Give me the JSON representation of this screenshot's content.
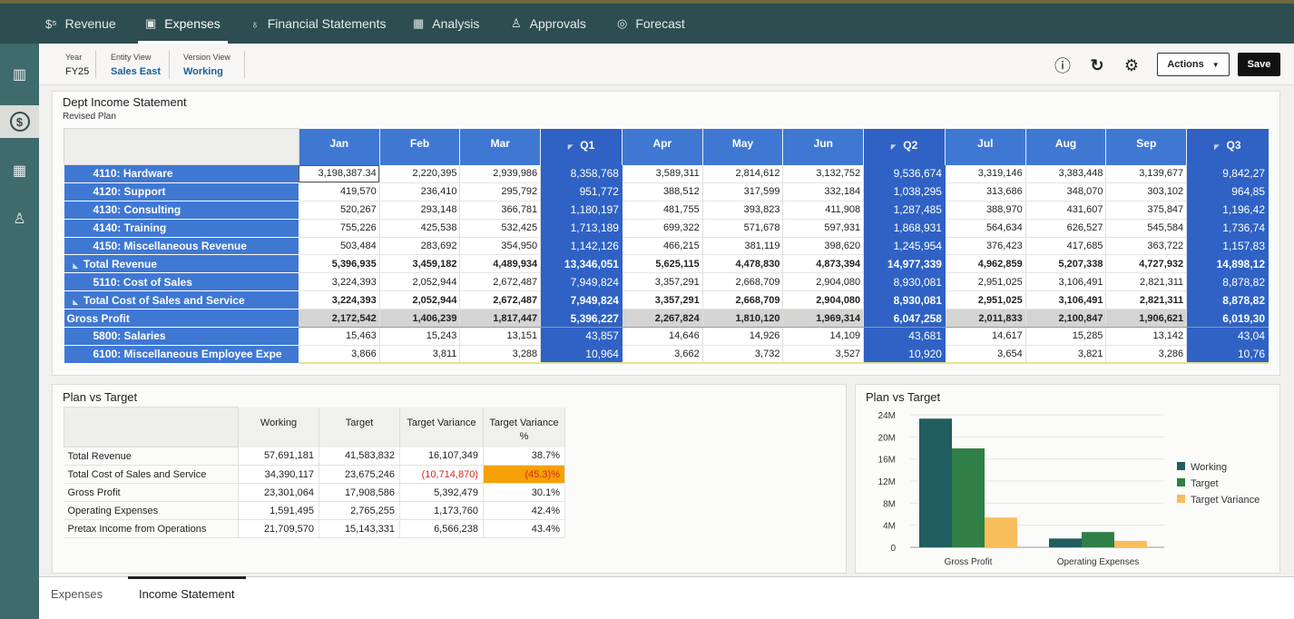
{
  "nav": {
    "tabs": [
      {
        "label": "Revenue",
        "icon": "revenue-icon",
        "glyph": "$⁵"
      },
      {
        "label": "Expenses",
        "icon": "wallet-icon",
        "glyph": "▣"
      },
      {
        "label": "Financial Statements",
        "icon": "lightbulb-icon",
        "glyph": "♁"
      },
      {
        "label": "Analysis",
        "icon": "calculator-icon",
        "glyph": "▦"
      },
      {
        "label": "Approvals",
        "icon": "org-chart-icon",
        "glyph": "♙"
      },
      {
        "label": "Forecast",
        "icon": "target-icon",
        "glyph": "◎"
      }
    ],
    "active": "Expenses"
  },
  "rail": {
    "items": [
      {
        "icon": "chart-icon",
        "glyph": "▥"
      },
      {
        "icon": "dollar-cycle-icon",
        "glyph": "$"
      },
      {
        "icon": "grid-settings-icon",
        "glyph": "▦"
      },
      {
        "icon": "user-dollar-icon",
        "glyph": "♙"
      }
    ]
  },
  "pov": {
    "year_label": "Year",
    "year_value": "FY25",
    "entity_label": "Entity View",
    "entity_value": "Sales East",
    "version_label": "Version View",
    "version_value": "Working"
  },
  "toolbar": {
    "info_glyph": "ⓘ",
    "refresh_glyph": "↻",
    "settings_glyph": "⚙",
    "actions_label": "Actions",
    "save_label": "Save"
  },
  "income": {
    "title": "Dept Income Statement",
    "subtitle": "Revised Plan",
    "columns": [
      {
        "label": "Jan",
        "q": false
      },
      {
        "label": "Feb",
        "q": false
      },
      {
        "label": "Mar",
        "q": false
      },
      {
        "label": "Q1",
        "q": true
      },
      {
        "label": "Apr",
        "q": false
      },
      {
        "label": "May",
        "q": false
      },
      {
        "label": "Jun",
        "q": false
      },
      {
        "label": "Q2",
        "q": true
      },
      {
        "label": "Jul",
        "q": false
      },
      {
        "label": "Aug",
        "q": false
      },
      {
        "label": "Sep",
        "q": false
      },
      {
        "label": "Q3",
        "q": true
      }
    ],
    "rows": [
      {
        "label": "4110: Hardware",
        "level": 2,
        "values": [
          "3,198,387.34",
          "2,220,395",
          "2,939,986",
          "8,358,768",
          "3,589,311",
          "2,814,612",
          "3,132,752",
          "9,536,674",
          "3,319,146",
          "3,383,448",
          "3,139,677",
          "9,842,27"
        ]
      },
      {
        "label": "4120: Support",
        "level": 2,
        "values": [
          "419,570",
          "236,410",
          "295,792",
          "951,772",
          "388,512",
          "317,599",
          "332,184",
          "1,038,295",
          "313,686",
          "348,070",
          "303,102",
          "964,85"
        ]
      },
      {
        "label": "4130: Consulting",
        "level": 2,
        "values": [
          "520,267",
          "293,148",
          "366,781",
          "1,180,197",
          "481,755",
          "393,823",
          "411,908",
          "1,287,485",
          "388,970",
          "431,607",
          "375,847",
          "1,196,42"
        ]
      },
      {
        "label": "4140: Training",
        "level": 2,
        "values": [
          "755,226",
          "425,538",
          "532,425",
          "1,713,189",
          "699,322",
          "571,678",
          "597,931",
          "1,868,931",
          "564,634",
          "626,527",
          "545,584",
          "1,736,74"
        ]
      },
      {
        "label": "4150: Miscellaneous Revenue",
        "level": 2,
        "values": [
          "503,484",
          "283,692",
          "354,950",
          "1,142,126",
          "466,215",
          "381,119",
          "398,620",
          "1,245,954",
          "376,423",
          "417,685",
          "363,722",
          "1,157,83"
        ]
      },
      {
        "label": "Total Revenue",
        "level": 1,
        "bold": true,
        "expand": true,
        "values": [
          "5,396,935",
          "3,459,182",
          "4,489,934",
          "13,346,051",
          "5,625,115",
          "4,478,830",
          "4,873,394",
          "14,977,339",
          "4,962,859",
          "5,207,338",
          "4,727,932",
          "14,898,12"
        ]
      },
      {
        "label": "5110: Cost of Sales",
        "level": 2,
        "values": [
          "3,224,393",
          "2,052,944",
          "2,672,487",
          "7,949,824",
          "3,357,291",
          "2,668,709",
          "2,904,080",
          "8,930,081",
          "2,951,025",
          "3,106,491",
          "2,821,311",
          "8,878,82"
        ]
      },
      {
        "label": "Total Cost of Sales and Service",
        "level": 1,
        "bold": true,
        "expand": true,
        "values": [
          "3,224,393",
          "2,052,944",
          "2,672,487",
          "7,949,824",
          "3,357,291",
          "2,668,709",
          "2,904,080",
          "8,930,081",
          "2,951,025",
          "3,106,491",
          "2,821,311",
          "8,878,82"
        ]
      },
      {
        "label": "Gross Profit",
        "level": 0,
        "bold": true,
        "gp": true,
        "values": [
          "2,172,542",
          "1,406,239",
          "1,817,447",
          "5,396,227",
          "2,267,824",
          "1,810,120",
          "1,969,314",
          "6,047,258",
          "2,011,833",
          "2,100,847",
          "1,906,621",
          "6,019,30"
        ]
      },
      {
        "label": "5800: Salaries",
        "level": 2,
        "values": [
          "15,463",
          "15,243",
          "13,151",
          "43,857",
          "14,646",
          "14,926",
          "14,109",
          "43,681",
          "14,617",
          "15,285",
          "13,142",
          "43,04"
        ]
      },
      {
        "label": "6100: Miscellaneous Employee Expe",
        "level": 2,
        "values": [
          "3,866",
          "3,811",
          "3,288",
          "10,964",
          "3,662",
          "3,732",
          "3,527",
          "10,920",
          "3,654",
          "3,821",
          "3,286",
          "10,76"
        ]
      }
    ]
  },
  "plan_table": {
    "title": "Plan vs Target",
    "headers": [
      "Working",
      "Target",
      "Target Variance",
      "Target Variance %"
    ],
    "rows": [
      {
        "label": "Total Revenue",
        "values": [
          "57,691,181",
          "41,583,832",
          "16,107,349",
          "38.7%"
        ]
      },
      {
        "label": "Total Cost of Sales and Service",
        "values": [
          "34,390,117",
          "23,675,246",
          "(10,714,870)",
          "(45.3)%"
        ],
        "neg": [
          false,
          false,
          true,
          true
        ]
      },
      {
        "label": "Gross Profit",
        "values": [
          "23,301,064",
          "17,908,586",
          "5,392,479",
          "30.1%"
        ]
      },
      {
        "label": "Operating Expenses",
        "values": [
          "1,591,495",
          "2,765,255",
          "1,173,760",
          "42.4%"
        ]
      },
      {
        "label": "Pretax Income from Operations",
        "values": [
          "21,709,570",
          "15,143,331",
          "6,566,238",
          "43.4%"
        ]
      }
    ]
  },
  "plan_chart": {
    "title": "Plan vs Target"
  },
  "chart_data": {
    "type": "bar",
    "categories": [
      "Gross Profit",
      "Operating Expenses"
    ],
    "series": [
      {
        "name": "Working",
        "values": [
          23301064,
          1591495
        ],
        "color": "#1f5d5f"
      },
      {
        "name": "Target",
        "values": [
          17908586,
          2765255
        ],
        "color": "#2f7f47"
      },
      {
        "name": "Target Variance",
        "values": [
          5392479,
          1173760
        ],
        "color": "#f8be5c"
      }
    ],
    "yticks": [
      "0",
      "4M",
      "8M",
      "12M",
      "16M",
      "20M",
      "24M"
    ],
    "ylim": [
      0,
      24000000
    ],
    "legend": "right"
  },
  "bottom_tabs": {
    "tabs": [
      "Expenses",
      "Income Statement"
    ],
    "active": "Income Statement"
  }
}
